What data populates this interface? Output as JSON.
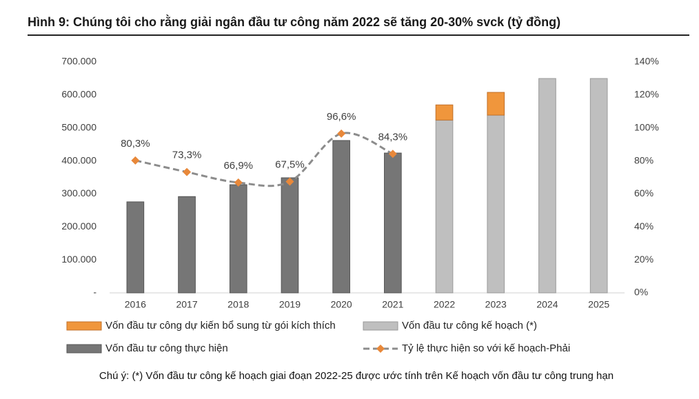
{
  "chart_data": {
    "type": "bar",
    "title": "Hình 9: Chúng tôi cho rằng giải ngân đầu tư công năm 2022 sẽ tăng 20-30% svck (tỷ đồng)",
    "note": "Chú ý: (*) Vốn đầu tư công kế hoạch giai đoạn 2022-25 được ước tính trên Kế hoạch vốn đầu tư công trung hạn",
    "categories": [
      "2016",
      "2017",
      "2018",
      "2019",
      "2020",
      "2021",
      "2022",
      "2023",
      "2024",
      "2025"
    ],
    "ylim": [
      0,
      700000
    ],
    "yticks": [
      {
        "value": 0,
        "label": "-"
      },
      {
        "value": 100000,
        "label": "100.000"
      },
      {
        "value": 200000,
        "label": "200.000"
      },
      {
        "value": 300000,
        "label": "300.000"
      },
      {
        "value": 400000,
        "label": "400.000"
      },
      {
        "value": 500000,
        "label": "500.000"
      },
      {
        "value": 600000,
        "label": "600.000"
      },
      {
        "value": 700000,
        "label": "700.000"
      }
    ],
    "y2lim": [
      0,
      140
    ],
    "y2ticks": [
      {
        "value": 0,
        "label": "0%"
      },
      {
        "value": 20,
        "label": "20%"
      },
      {
        "value": 40,
        "label": "40%"
      },
      {
        "value": 60,
        "label": "60%"
      },
      {
        "value": 80,
        "label": "80%"
      },
      {
        "value": 100,
        "label": "100%"
      },
      {
        "value": 120,
        "label": "120%"
      },
      {
        "value": 140,
        "label": "140%"
      }
    ],
    "series": [
      {
        "name": "Vốn đầu tư công dự kiến bổ sung từ gói kích thích",
        "type": "bar",
        "color": "#f0963c",
        "values": [
          null,
          null,
          null,
          null,
          null,
          null,
          46000,
          69000,
          null,
          null
        ]
      },
      {
        "name": "Vốn đầu tư công kế hoạch (*)",
        "type": "bar",
        "color": "#bfbfbf",
        "values": [
          null,
          null,
          null,
          null,
          null,
          null,
          524000,
          539000,
          650000,
          650000
        ]
      },
      {
        "name": "Vốn đầu tư công thực hiện",
        "type": "bar",
        "color": "#767676",
        "values": [
          276000,
          292000,
          328000,
          349000,
          462000,
          424000,
          null,
          null,
          null,
          null
        ]
      },
      {
        "name": "Tỷ lệ thực hiện so với kế hoạch-Phải",
        "type": "line",
        "axis": "y2",
        "color": "#8c8c8c",
        "marker_color": "#e8883a",
        "values": [
          80.3,
          73.3,
          66.9,
          67.5,
          96.6,
          84.3,
          null,
          null,
          null,
          null
        ],
        "value_labels": [
          "80,3%",
          "73,3%",
          "66,9%",
          "67,5%",
          "96,6%",
          "84,3%",
          null,
          null,
          null,
          null
        ]
      }
    ],
    "stack_order": [
      2,
      1,
      0
    ]
  }
}
